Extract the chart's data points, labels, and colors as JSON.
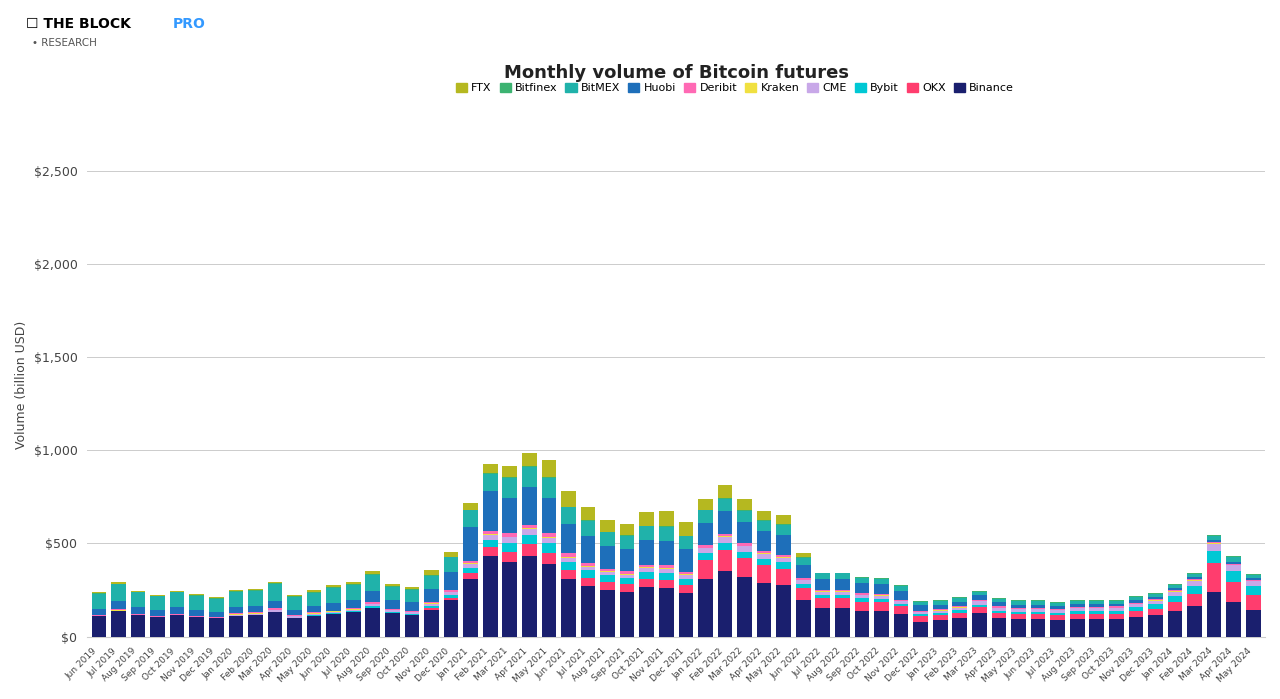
{
  "title": "Monthly volume of Bitcoin futures",
  "ylabel": "Volume (billion USD)",
  "exchanges": [
    "FTX",
    "Bitfinex",
    "BitMEX",
    "Huobi",
    "Deribit",
    "Kraken",
    "CME",
    "Bybit",
    "OKX",
    "Binance"
  ],
  "colors": {
    "FTX": "#b5b820",
    "Bitfinex": "#3cb371",
    "BitMEX": "#20b2aa",
    "Huobi": "#1e6fba",
    "Deribit": "#ff69b4",
    "Kraken": "#f0e040",
    "CME": "#c8a8e8",
    "Bybit": "#00c8d4",
    "OKX": "#ff3d6e",
    "Binance": "#1a1f6e"
  },
  "months": [
    "Jun 2019",
    "Jul 2019",
    "Aug 2019",
    "Sep 2019",
    "Oct 2019",
    "Nov 2019",
    "Dec 2019",
    "Jan 2020",
    "Feb 2020",
    "Mar 2020",
    "Apr 2020",
    "May 2020",
    "Jun 2020",
    "Jul 2020",
    "Aug 2020",
    "Sep 2020",
    "Oct 2020",
    "Nov 2020",
    "Dec 2020",
    "Jan 2021",
    "Feb 2021",
    "Mar 2021",
    "Apr 2021",
    "May 2021",
    "Jun 2021",
    "Jul 2021",
    "Aug 2021",
    "Sep 2021",
    "Oct 2021",
    "Nov 2021",
    "Dec 2021",
    "Jan 2022",
    "Feb 2022",
    "Mar 2022",
    "Apr 2022",
    "May 2022",
    "Jun 2022",
    "Jul 2022",
    "Aug 2022",
    "Sep 2022",
    "Oct 2022",
    "Nov 2022",
    "Dec 2022",
    "Jan 2023",
    "Feb 2023",
    "Mar 2023",
    "Apr 2023",
    "May 2023",
    "Jun 2023",
    "Jul 2023",
    "Aug 2023",
    "Sep 2023",
    "Oct 2023",
    "Nov 2023",
    "Dec 2023",
    "Jan 2024",
    "Feb 2024",
    "Mar 2024",
    "Apr 2024",
    "May 2024"
  ],
  "data": {
    "Binance": [
      110,
      140,
      115,
      105,
      115,
      105,
      100,
      110,
      115,
      130,
      100,
      110,
      120,
      130,
      155,
      125,
      115,
      145,
      195,
      310,
      430,
      400,
      430,
      390,
      310,
      270,
      250,
      240,
      265,
      260,
      235,
      310,
      350,
      320,
      290,
      275,
      195,
      155,
      155,
      140,
      140,
      120,
      80,
      90,
      100,
      125,
      100,
      95,
      95,
      90,
      95,
      95,
      95,
      105,
      115,
      140,
      165,
      240,
      185,
      145
    ],
    "OKX": [
      0,
      0,
      0,
      0,
      0,
      0,
      0,
      0,
      0,
      0,
      0,
      0,
      0,
      0,
      0,
      0,
      0,
      8,
      12,
      30,
      50,
      55,
      65,
      60,
      50,
      45,
      42,
      40,
      45,
      45,
      40,
      100,
      115,
      100,
      95,
      90,
      65,
      50,
      50,
      48,
      46,
      42,
      30,
      25,
      28,
      32,
      28,
      25,
      25,
      24,
      27,
      27,
      27,
      30,
      35,
      45,
      65,
      155,
      110,
      80
    ],
    "Bybit": [
      0,
      0,
      0,
      0,
      0,
      0,
      0,
      0,
      0,
      0,
      0,
      5,
      5,
      6,
      10,
      8,
      8,
      12,
      18,
      30,
      40,
      45,
      50,
      50,
      42,
      40,
      37,
      35,
      38,
      38,
      35,
      38,
      40,
      36,
      34,
      33,
      24,
      20,
      20,
      20,
      18,
      15,
      12,
      12,
      13,
      14,
      12,
      12,
      12,
      14,
      17,
      17,
      18,
      22,
      25,
      32,
      40,
      65,
      55,
      45
    ],
    "CME": [
      0,
      0,
      0,
      0,
      0,
      0,
      0,
      8,
      8,
      12,
      8,
      8,
      8,
      8,
      10,
      8,
      8,
      12,
      14,
      20,
      28,
      32,
      32,
      28,
      22,
      20,
      18,
      18,
      20,
      22,
      20,
      26,
      30,
      28,
      26,
      24,
      18,
      15,
      15,
      14,
      14,
      12,
      9,
      12,
      14,
      18,
      14,
      14,
      14,
      14,
      14,
      14,
      14,
      18,
      18,
      24,
      30,
      38,
      32,
      26
    ],
    "Kraken": [
      2,
      3,
      2,
      2,
      2,
      2,
      2,
      2,
      2,
      2,
      2,
      2,
      2,
      2,
      2,
      2,
      2,
      2,
      3,
      4,
      5,
      5,
      5,
      6,
      5,
      5,
      4,
      4,
      4,
      4,
      4,
      4,
      4,
      4,
      4,
      4,
      3,
      3,
      3,
      3,
      3,
      3,
      2,
      2,
      2,
      2,
      2,
      2,
      2,
      2,
      2,
      2,
      2,
      2,
      2,
      2,
      2,
      2,
      2,
      2
    ],
    "Deribit": [
      3,
      4,
      4,
      3,
      4,
      4,
      4,
      5,
      5,
      7,
      5,
      5,
      5,
      5,
      7,
      5,
      5,
      7,
      8,
      12,
      14,
      18,
      18,
      22,
      18,
      15,
      14,
      14,
      15,
      15,
      14,
      14,
      14,
      14,
      12,
      12,
      9,
      8,
      8,
      8,
      8,
      7,
      5,
      6,
      6,
      6,
      6,
      6,
      6,
      6,
      6,
      6,
      6,
      6,
      6,
      6,
      6,
      6,
      6,
      6
    ],
    "Huobi": [
      35,
      42,
      36,
      32,
      36,
      32,
      28,
      35,
      35,
      42,
      30,
      35,
      42,
      48,
      60,
      48,
      48,
      72,
      95,
      180,
      215,
      190,
      205,
      190,
      155,
      145,
      120,
      120,
      130,
      130,
      120,
      120,
      120,
      115,
      108,
      108,
      72,
      60,
      60,
      55,
      54,
      48,
      30,
      24,
      24,
      24,
      22,
      18,
      18,
      14,
      14,
      12,
      12,
      12,
      12,
      10,
      10,
      12,
      12,
      10
    ],
    "BitMEX": [
      80,
      92,
      80,
      75,
      80,
      75,
      70,
      80,
      80,
      92,
      70,
      70,
      80,
      80,
      88,
      70,
      65,
      70,
      80,
      92,
      92,
      105,
      105,
      105,
      92,
      80,
      75,
      70,
      75,
      75,
      70,
      65,
      65,
      58,
      52,
      52,
      35,
      28,
      28,
      26,
      26,
      24,
      20,
      20,
      20,
      20,
      20,
      18,
      18,
      18,
      18,
      18,
      18,
      18,
      18,
      18,
      18,
      24,
      24,
      18
    ],
    "Bitfinex": [
      4,
      4,
      4,
      3,
      4,
      4,
      4,
      4,
      4,
      4,
      4,
      4,
      4,
      4,
      4,
      4,
      4,
      4,
      4,
      4,
      4,
      4,
      4,
      4,
      4,
      4,
      4,
      4,
      4,
      4,
      4,
      4,
      4,
      4,
      4,
      4,
      4,
      4,
      4,
      4,
      4,
      4,
      4,
      4,
      4,
      4,
      4,
      4,
      4,
      4,
      4,
      4,
      4,
      4,
      4,
      4,
      4,
      4,
      4,
      4
    ],
    "FTX": [
      5,
      6,
      6,
      5,
      5,
      5,
      5,
      6,
      6,
      6,
      6,
      12,
      12,
      12,
      18,
      12,
      12,
      24,
      24,
      36,
      50,
      60,
      72,
      95,
      82,
      72,
      60,
      60,
      72,
      82,
      72,
      60,
      72,
      60,
      48,
      48,
      24,
      0,
      0,
      0,
      0,
      0,
      0,
      0,
      0,
      0,
      0,
      0,
      0,
      0,
      0,
      0,
      0,
      0,
      0,
      0,
      0,
      0,
      0,
      0
    ]
  }
}
